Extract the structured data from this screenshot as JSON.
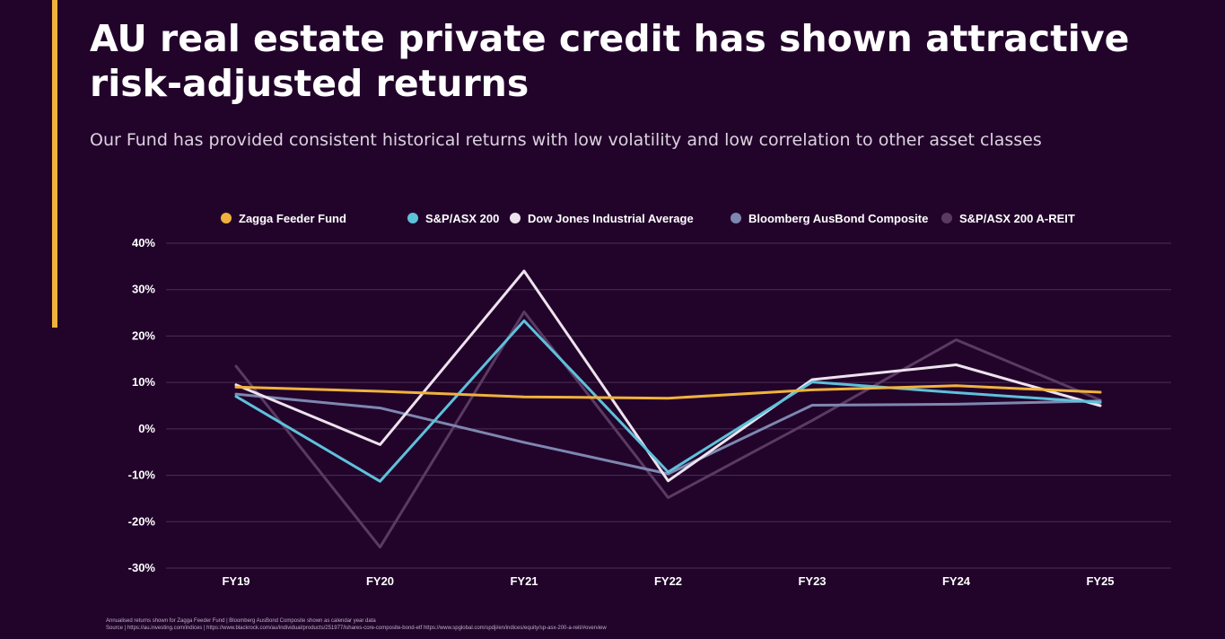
{
  "slide": {
    "title_line1": "AU real estate private credit has shown attractive",
    "title_line2": "risk-adjusted returns",
    "subtitle": "Our Fund has provided consistent historical returns with low volatility and low correlation to other asset classes",
    "footnote_line1": "Annualised returns shown for Zagga Feeder Fund | Bloomberg AusBond Composite shown as calendar year data",
    "footnote_line2": "Source | https://au.investing.com/indices | https://www.blackrock.com/au/individual/products/251977/ishares-core-composite-bond-etf https://www.spglobal.com/spdji/en/indices/equity/sp-asx-200-a-reit/#overview"
  },
  "colors": {
    "background": "#22042b",
    "accent": "#f0b23c",
    "grid": "#4a2f52",
    "text": "#ffffff"
  },
  "chart_data": {
    "type": "line",
    "title": "",
    "xlabel": "",
    "ylabel": "",
    "categories": [
      "FY19",
      "FY20",
      "FY21",
      "FY22",
      "FY23",
      "FY24",
      "FY25"
    ],
    "ylim": [
      -30,
      40
    ],
    "yticks": [
      -30,
      -20,
      -10,
      0,
      10,
      20,
      30,
      40
    ],
    "ytick_labels": [
      "-30%",
      "-20%",
      "-10%",
      "0%",
      "10%",
      "20%",
      "30%",
      "40%"
    ],
    "grid": true,
    "legend_position": "top",
    "series": [
      {
        "name": "S&P/ASX 200 A-REIT",
        "color": "#5a3a62",
        "values": [
          13.5,
          -25.5,
          25.2,
          -14.8,
          1.8,
          19.2,
          6.2
        ]
      },
      {
        "name": "Bloomberg AusBond Composite",
        "color": "#7e87b0",
        "values": [
          7.5,
          4.5,
          -2.9,
          -9.7,
          5.1,
          5.3,
          6.0
        ]
      },
      {
        "name": "Dow Jones Industrial Average",
        "color": "#ede3ee",
        "values": [
          9.5,
          -3.4,
          34.0,
          -11.2,
          10.6,
          13.8,
          5.0
        ]
      },
      {
        "name": "S&P/ASX 200",
        "color": "#5ec1da",
        "values": [
          7.0,
          -11.3,
          23.3,
          -9.3,
          10.1,
          7.8,
          5.7
        ]
      },
      {
        "name": "Zagga Feeder Fund",
        "color": "#f0b23c",
        "values": [
          9.0,
          8.1,
          6.9,
          6.6,
          8.4,
          9.3,
          7.9
        ]
      }
    ],
    "legend_order": [
      "Zagga Feeder Fund",
      "S&P/ASX 200",
      "Dow Jones Industrial Average",
      "Bloomberg AusBond Composite",
      "S&P/ASX 200 A-REIT"
    ]
  }
}
